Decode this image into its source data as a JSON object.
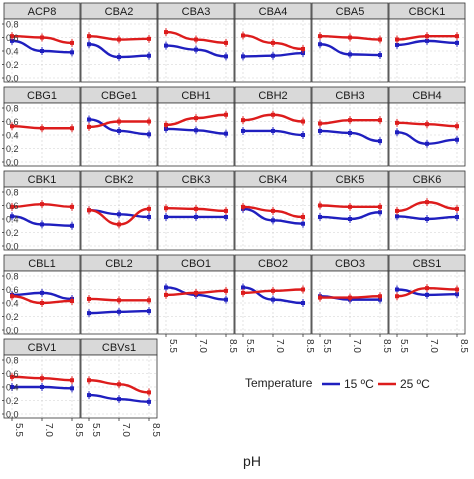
{
  "chart_data": {
    "type": "line",
    "x": [
      5.5,
      7.0,
      8.5
    ],
    "x_tick_labels": [
      "5.5",
      "7.0",
      "8.5"
    ],
    "y_tick_labels": [
      "0.0",
      "0.2",
      "0.4",
      "0.6",
      "0.8"
    ],
    "ylim": [
      0,
      0.8
    ],
    "xlim": [
      5.5,
      8.5
    ],
    "xlabel": "pH",
    "ylabel": "",
    "legend": {
      "title": "Temperature",
      "position": "right",
      "items": [
        {
          "label": "15 ºC",
          "color": "#1f1fbf"
        },
        {
          "label": "25 ºC",
          "color": "#dd1c1c"
        }
      ]
    },
    "grid": true,
    "facets": [
      {
        "name": "ACP8",
        "series": [
          {
            "values": [
              0.55,
              0.4,
              0.38
            ]
          },
          {
            "values": [
              0.62,
              0.6,
              0.52
            ]
          }
        ]
      },
      {
        "name": "CBA2",
        "series": [
          {
            "values": [
              0.5,
              0.31,
              0.33
            ]
          },
          {
            "values": [
              0.62,
              0.57,
              0.58
            ]
          }
        ]
      },
      {
        "name": "CBA3",
        "series": [
          {
            "values": [
              0.48,
              0.42,
              0.32
            ]
          },
          {
            "values": [
              0.68,
              0.57,
              0.52
            ]
          }
        ]
      },
      {
        "name": "CBA4",
        "series": [
          {
            "values": [
              0.32,
              0.33,
              0.37
            ]
          },
          {
            "values": [
              0.63,
              0.52,
              0.43
            ]
          }
        ]
      },
      {
        "name": "CBA5",
        "series": [
          {
            "values": [
              0.5,
              0.35,
              0.34
            ]
          },
          {
            "values": [
              0.62,
              0.6,
              0.57
            ]
          }
        ]
      },
      {
        "name": "CBCK1",
        "series": [
          {
            "values": [
              0.49,
              0.55,
              0.52
            ]
          },
          {
            "values": [
              0.57,
              0.62,
              0.62
            ]
          }
        ]
      },
      {
        "name": "CBG1",
        "series": [
          {
            "values": [
              null,
              null,
              null
            ]
          },
          {
            "values": [
              0.53,
              0.5,
              0.5
            ]
          }
        ]
      },
      {
        "name": "CBGe1",
        "series": [
          {
            "values": [
              0.63,
              0.46,
              0.41
            ]
          },
          {
            "values": [
              0.52,
              0.6,
              0.6
            ]
          }
        ]
      },
      {
        "name": "CBH1",
        "series": [
          {
            "values": [
              0.49,
              0.47,
              0.42
            ]
          },
          {
            "values": [
              0.55,
              0.65,
              0.7
            ]
          }
        ]
      },
      {
        "name": "CBH2",
        "series": [
          {
            "values": [
              0.46,
              0.46,
              0.4
            ]
          },
          {
            "values": [
              0.62,
              0.7,
              0.6
            ]
          }
        ]
      },
      {
        "name": "CBH3",
        "series": [
          {
            "values": [
              0.46,
              0.43,
              0.31
            ]
          },
          {
            "values": [
              0.57,
              0.62,
              0.62
            ]
          }
        ]
      },
      {
        "name": "CBH4",
        "series": [
          {
            "values": [
              0.44,
              0.27,
              0.33
            ]
          },
          {
            "values": [
              0.58,
              0.56,
              0.53
            ]
          }
        ]
      },
      {
        "name": "CBK1",
        "series": [
          {
            "values": [
              0.44,
              0.32,
              0.3
            ]
          },
          {
            "values": [
              0.58,
              0.62,
              0.58
            ]
          }
        ]
      },
      {
        "name": "CBK2",
        "series": [
          {
            "values": [
              0.53,
              0.47,
              0.43
            ]
          },
          {
            "values": [
              0.53,
              0.32,
              0.55
            ]
          }
        ]
      },
      {
        "name": "CBK3",
        "series": [
          {
            "values": [
              0.43,
              0.43,
              0.43
            ]
          },
          {
            "values": [
              0.56,
              0.55,
              0.52
            ]
          }
        ]
      },
      {
        "name": "CBK4",
        "series": [
          {
            "values": [
              0.55,
              0.38,
              0.33
            ]
          },
          {
            "values": [
              0.58,
              0.52,
              0.43
            ]
          }
        ]
      },
      {
        "name": "CBK5",
        "series": [
          {
            "values": [
              0.43,
              0.4,
              0.5
            ]
          },
          {
            "values": [
              0.6,
              0.58,
              0.58
            ]
          }
        ]
      },
      {
        "name": "CBK6",
        "series": [
          {
            "values": [
              0.44,
              0.4,
              0.43
            ]
          },
          {
            "values": [
              0.52,
              0.65,
              0.55
            ]
          }
        ]
      },
      {
        "name": "CBL1",
        "series": [
          {
            "values": [
              0.52,
              0.55,
              0.46
            ]
          },
          {
            "values": [
              0.5,
              0.4,
              0.43
            ]
          }
        ]
      },
      {
        "name": "CBL2",
        "series": [
          {
            "values": [
              0.25,
              0.27,
              0.28
            ]
          },
          {
            "values": [
              0.46,
              0.44,
              0.44
            ]
          }
        ]
      },
      {
        "name": "CBO1",
        "series": [
          {
            "values": [
              0.63,
              0.52,
              0.45
            ]
          },
          {
            "values": [
              0.52,
              0.55,
              0.58
            ]
          }
        ]
      },
      {
        "name": "CBO2",
        "series": [
          {
            "values": [
              0.63,
              0.45,
              0.4
            ]
          },
          {
            "values": [
              0.55,
              0.58,
              0.6
            ]
          }
        ]
      },
      {
        "name": "CBO3",
        "series": [
          {
            "values": [
              0.5,
              0.45,
              0.45
            ]
          },
          {
            "values": [
              0.48,
              0.48,
              0.5
            ]
          }
        ]
      },
      {
        "name": "CBS1",
        "series": [
          {
            "values": [
              0.6,
              0.52,
              0.53
            ]
          },
          {
            "values": [
              0.5,
              0.62,
              0.6
            ]
          }
        ]
      },
      {
        "name": "CBV1",
        "series": [
          {
            "values": [
              0.4,
              0.4,
              0.38
            ]
          },
          {
            "values": [
              0.55,
              0.53,
              0.5
            ]
          }
        ]
      },
      {
        "name": "CBVs1",
        "series": [
          {
            "values": [
              0.28,
              0.22,
              0.18
            ]
          },
          {
            "values": [
              0.5,
              0.44,
              0.32
            ]
          }
        ]
      }
    ]
  }
}
